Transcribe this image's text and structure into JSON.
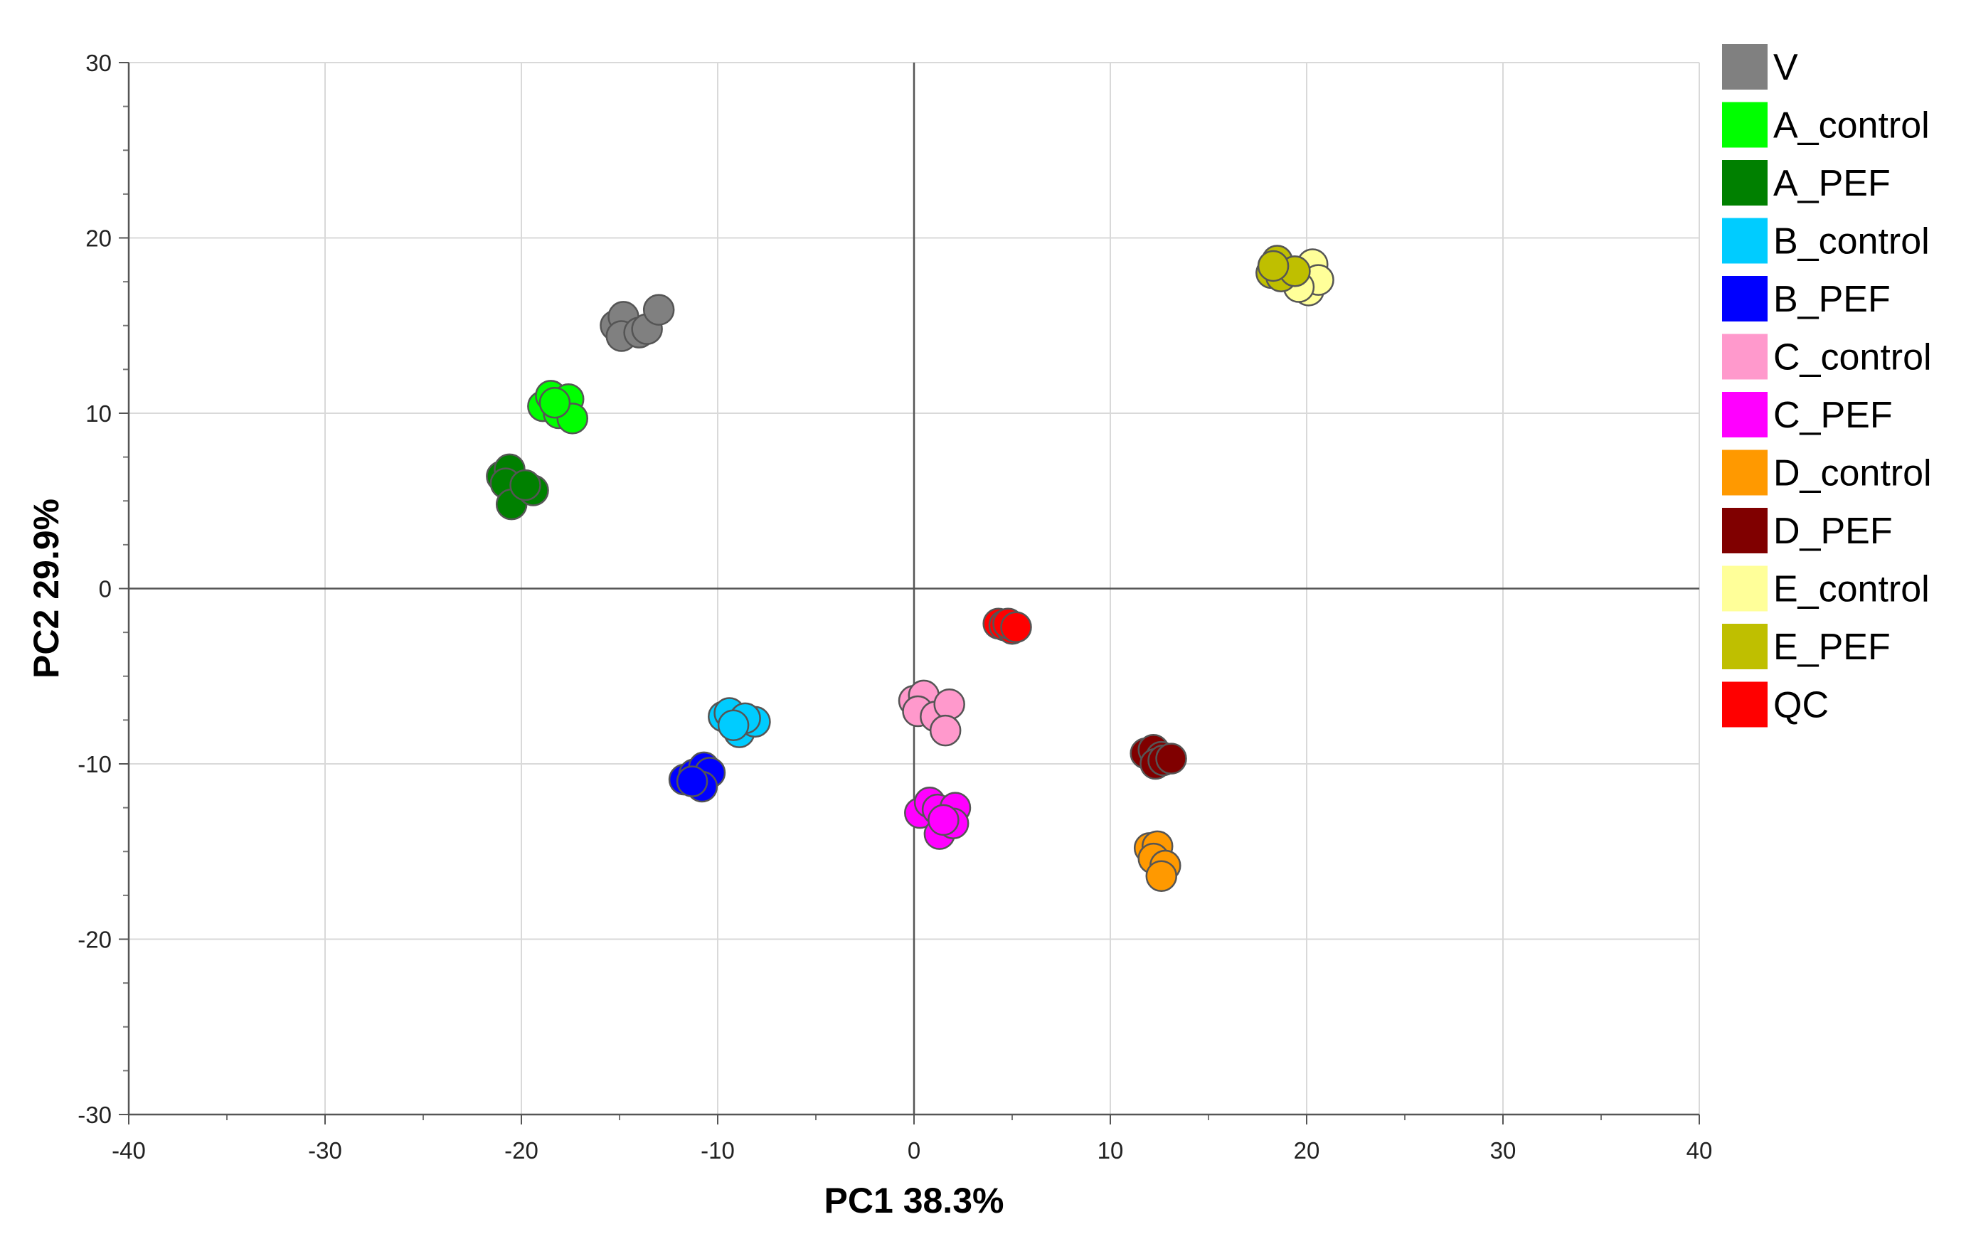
{
  "chart_data": {
    "type": "scatter",
    "xlabel": "PC1 38.3%",
    "ylabel": "PC2 29.9%",
    "xlim": [
      -40,
      40
    ],
    "ylim": [
      -30,
      30
    ],
    "xticks": [
      -40,
      -30,
      -20,
      -10,
      0,
      10,
      20,
      30,
      40
    ],
    "yticks": [
      -30,
      -20,
      -10,
      0,
      10,
      20,
      30
    ],
    "grid": true,
    "legend_position": "right",
    "series": [
      {
        "name": "V",
        "color": "#808080",
        "points": [
          [
            -15.2,
            15.0
          ],
          [
            -14.8,
            15.5
          ],
          [
            -14.9,
            14.4
          ],
          [
            -14.0,
            14.6
          ],
          [
            -13.6,
            14.8
          ],
          [
            -13.0,
            15.9
          ]
        ]
      },
      {
        "name": "A_control",
        "color": "#00FF00",
        "points": [
          [
            -18.9,
            10.4
          ],
          [
            -18.5,
            11.0
          ],
          [
            -18.1,
            10.0
          ],
          [
            -17.6,
            10.8
          ],
          [
            -17.4,
            9.7
          ],
          [
            -18.3,
            10.6
          ]
        ]
      },
      {
        "name": "A_PEF",
        "color": "#008000",
        "points": [
          [
            -21.0,
            6.4
          ],
          [
            -20.6,
            6.8
          ],
          [
            -20.8,
            6.0
          ],
          [
            -20.5,
            4.8
          ],
          [
            -19.4,
            5.6
          ],
          [
            -19.8,
            5.9
          ]
        ]
      },
      {
        "name": "B_control",
        "color": "#00CCFF",
        "points": [
          [
            -9.7,
            -7.3
          ],
          [
            -9.4,
            -7.1
          ],
          [
            -8.9,
            -8.2
          ],
          [
            -8.1,
            -7.6
          ],
          [
            -8.6,
            -7.4
          ],
          [
            -9.2,
            -7.8
          ]
        ]
      },
      {
        "name": "B_PEF",
        "color": "#0000FF",
        "points": [
          [
            -11.7,
            -10.9
          ],
          [
            -11.2,
            -10.6
          ],
          [
            -10.7,
            -10.2
          ],
          [
            -10.4,
            -10.5
          ],
          [
            -10.8,
            -11.3
          ],
          [
            -11.3,
            -11.0
          ]
        ]
      },
      {
        "name": "C_control",
        "color": "#FF99CC",
        "points": [
          [
            0.0,
            -6.4
          ],
          [
            0.5,
            -6.1
          ],
          [
            0.2,
            -7.0
          ],
          [
            1.1,
            -7.3
          ],
          [
            1.8,
            -6.6
          ],
          [
            1.6,
            -8.1
          ]
        ]
      },
      {
        "name": "C_PEF",
        "color": "#FF00FF",
        "points": [
          [
            0.3,
            -12.8
          ],
          [
            0.8,
            -12.2
          ],
          [
            1.2,
            -12.6
          ],
          [
            1.3,
            -14.0
          ],
          [
            2.1,
            -12.5
          ],
          [
            2.0,
            -13.4
          ],
          [
            1.5,
            -13.2
          ]
        ]
      },
      {
        "name": "D_control",
        "color": "#FF9900",
        "points": [
          [
            12.0,
            -14.8
          ],
          [
            12.4,
            -14.7
          ],
          [
            12.2,
            -15.4
          ],
          [
            12.8,
            -15.8
          ],
          [
            12.6,
            -16.4
          ]
        ]
      },
      {
        "name": "D_PEF",
        "color": "#800000",
        "points": [
          [
            11.8,
            -9.4
          ],
          [
            12.2,
            -9.2
          ],
          [
            12.6,
            -9.6
          ],
          [
            12.3,
            -10.0
          ],
          [
            12.7,
            -9.8
          ],
          [
            13.1,
            -9.7
          ]
        ]
      },
      {
        "name": "E_control",
        "color": "#FFFF99",
        "points": [
          [
            19.4,
            18.0
          ],
          [
            19.8,
            17.4
          ],
          [
            20.3,
            18.5
          ],
          [
            20.1,
            17.0
          ],
          [
            20.6,
            17.6
          ],
          [
            19.6,
            17.2
          ]
        ]
      },
      {
        "name": "E_PEF",
        "color": "#BFBF00",
        "points": [
          [
            18.2,
            18.0
          ],
          [
            18.5,
            18.7
          ],
          [
            18.7,
            17.8
          ],
          [
            19.4,
            18.1
          ],
          [
            18.3,
            18.4
          ]
        ]
      },
      {
        "name": "QC",
        "color": "#FF0000",
        "points": [
          [
            4.3,
            -2.0
          ],
          [
            4.6,
            -2.1
          ],
          [
            5.0,
            -2.3
          ],
          [
            4.8,
            -2.0
          ],
          [
            5.2,
            -2.2
          ]
        ]
      }
    ]
  }
}
